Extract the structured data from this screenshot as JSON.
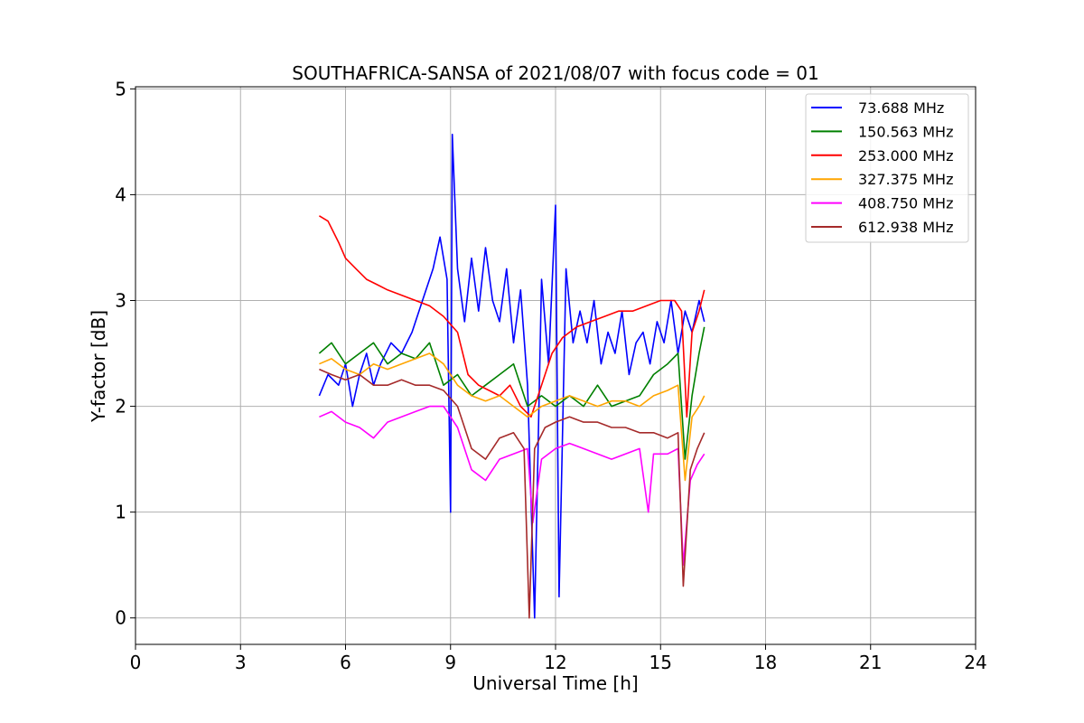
{
  "chart_data": {
    "type": "line",
    "title": "SOUTHAFRICA-SANSA of 2021/08/07 with focus code = 01",
    "xlabel": "Universal Time [h]",
    "ylabel": "Y-factor [dB]",
    "xlim": [
      0,
      24
    ],
    "ylim": [
      -0.25,
      5.02
    ],
    "xticks": [
      0,
      3,
      6,
      9,
      12,
      15,
      18,
      21,
      24
    ],
    "yticks": [
      0,
      1,
      2,
      3,
      4,
      5
    ],
    "grid": true,
    "legend_position": "top-right",
    "series": [
      {
        "name": " 73.688 MHz",
        "color": "#0000ff",
        "x": [
          5.25,
          5.5,
          5.8,
          6.0,
          6.2,
          6.4,
          6.6,
          6.8,
          7.0,
          7.3,
          7.6,
          7.9,
          8.2,
          8.5,
          8.7,
          8.9,
          9.0,
          9.05,
          9.2,
          9.4,
          9.6,
          9.8,
          10.0,
          10.2,
          10.4,
          10.6,
          10.8,
          11.0,
          11.2,
          11.4,
          11.6,
          11.8,
          12.0,
          12.1,
          12.3,
          12.5,
          12.7,
          12.9,
          13.1,
          13.3,
          13.5,
          13.7,
          13.9,
          14.1,
          14.3,
          14.5,
          14.7,
          14.9,
          15.1,
          15.3,
          15.5,
          15.7,
          15.9,
          16.1,
          16.25
        ],
        "y": [
          2.1,
          2.3,
          2.2,
          2.4,
          2.0,
          2.3,
          2.5,
          2.2,
          2.4,
          2.6,
          2.5,
          2.7,
          3.0,
          3.3,
          3.6,
          3.2,
          1.0,
          4.57,
          3.3,
          2.8,
          3.4,
          2.9,
          3.5,
          3.0,
          2.8,
          3.3,
          2.6,
          3.1,
          2.2,
          0.0,
          3.2,
          2.4,
          3.9,
          0.2,
          3.3,
          2.6,
          2.9,
          2.6,
          3.0,
          2.4,
          2.7,
          2.5,
          2.9,
          2.3,
          2.6,
          2.7,
          2.4,
          2.8,
          2.6,
          3.0,
          2.5,
          2.9,
          2.7,
          3.0,
          2.8
        ]
      },
      {
        "name": "150.563 MHz",
        "color": "#008000",
        "x": [
          5.25,
          5.6,
          6.0,
          6.4,
          6.8,
          7.2,
          7.6,
          8.0,
          8.4,
          8.8,
          9.2,
          9.6,
          10.0,
          10.4,
          10.8,
          11.2,
          11.6,
          12.0,
          12.4,
          12.8,
          13.2,
          13.6,
          14.0,
          14.4,
          14.8,
          15.2,
          15.5,
          15.7,
          15.9,
          16.1,
          16.25
        ],
        "y": [
          2.5,
          2.6,
          2.4,
          2.5,
          2.6,
          2.4,
          2.5,
          2.45,
          2.6,
          2.2,
          2.3,
          2.1,
          2.2,
          2.3,
          2.4,
          2.0,
          2.1,
          2.0,
          2.1,
          2.0,
          2.2,
          2.0,
          2.05,
          2.1,
          2.3,
          2.4,
          2.5,
          1.5,
          2.1,
          2.5,
          2.75
        ]
      },
      {
        "name": "253.000 MHz",
        "color": "#ff0000",
        "x": [
          5.25,
          5.5,
          5.8,
          6.0,
          6.3,
          6.6,
          6.9,
          7.2,
          7.6,
          8.0,
          8.4,
          8.8,
          9.2,
          9.5,
          9.8,
          10.1,
          10.4,
          10.7,
          11.0,
          11.3,
          11.6,
          11.9,
          12.2,
          12.6,
          13.0,
          13.4,
          13.8,
          14.2,
          14.6,
          15.0,
          15.4,
          15.6,
          15.75,
          15.9,
          16.1,
          16.25
        ],
        "y": [
          3.8,
          3.75,
          3.55,
          3.4,
          3.3,
          3.2,
          3.15,
          3.1,
          3.05,
          3.0,
          2.95,
          2.85,
          2.7,
          2.3,
          2.2,
          2.15,
          2.1,
          2.2,
          2.0,
          1.9,
          2.2,
          2.5,
          2.65,
          2.75,
          2.8,
          2.85,
          2.9,
          2.9,
          2.95,
          3.0,
          3.0,
          2.9,
          1.9,
          2.7,
          2.9,
          3.1
        ]
      },
      {
        "name": "327.375 MHz",
        "color": "#ffa500",
        "x": [
          5.25,
          5.6,
          6.0,
          6.4,
          6.8,
          7.2,
          7.6,
          8.0,
          8.4,
          8.8,
          9.2,
          9.6,
          10.0,
          10.4,
          10.8,
          11.2,
          11.6,
          12.0,
          12.4,
          12.8,
          13.2,
          13.6,
          14.0,
          14.4,
          14.8,
          15.2,
          15.5,
          15.7,
          15.9,
          16.1,
          16.25
        ],
        "y": [
          2.4,
          2.45,
          2.35,
          2.3,
          2.4,
          2.35,
          2.4,
          2.45,
          2.5,
          2.4,
          2.2,
          2.1,
          2.05,
          2.1,
          2.0,
          1.9,
          2.0,
          2.05,
          2.1,
          2.05,
          2.0,
          2.05,
          2.05,
          2.0,
          2.1,
          2.15,
          2.2,
          1.3,
          1.9,
          2.0,
          2.1
        ]
      },
      {
        "name": "408.750 MHz",
        "color": "#ff00ff",
        "x": [
          5.25,
          5.6,
          6.0,
          6.4,
          6.8,
          7.2,
          7.6,
          8.0,
          8.4,
          8.8,
          9.2,
          9.6,
          10.0,
          10.4,
          10.8,
          11.2,
          11.35,
          11.6,
          12.0,
          12.4,
          12.8,
          13.2,
          13.6,
          14.0,
          14.4,
          14.65,
          14.8,
          15.2,
          15.5,
          15.65,
          15.85,
          16.05,
          16.25
        ],
        "y": [
          1.9,
          1.95,
          1.85,
          1.8,
          1.7,
          1.85,
          1.9,
          1.95,
          2.0,
          2.0,
          1.8,
          1.4,
          1.3,
          1.5,
          1.55,
          1.6,
          0.9,
          1.5,
          1.6,
          1.65,
          1.6,
          1.55,
          1.5,
          1.55,
          1.6,
          1.0,
          1.55,
          1.55,
          1.6,
          0.5,
          1.3,
          1.45,
          1.55
        ]
      },
      {
        "name": "612.938 MHz",
        "color": "#a52a2a",
        "x": [
          5.25,
          5.6,
          6.0,
          6.4,
          6.8,
          7.2,
          7.6,
          8.0,
          8.4,
          8.8,
          9.2,
          9.6,
          10.0,
          10.4,
          10.8,
          11.1,
          11.25,
          11.4,
          11.7,
          12.0,
          12.4,
          12.8,
          13.2,
          13.6,
          14.0,
          14.4,
          14.8,
          15.2,
          15.5,
          15.65,
          15.85,
          16.05,
          16.25
        ],
        "y": [
          2.35,
          2.3,
          2.25,
          2.3,
          2.2,
          2.2,
          2.25,
          2.2,
          2.2,
          2.15,
          2.0,
          1.6,
          1.5,
          1.7,
          1.75,
          1.6,
          0.0,
          1.6,
          1.8,
          1.85,
          1.9,
          1.85,
          1.85,
          1.8,
          1.8,
          1.75,
          1.75,
          1.7,
          1.75,
          0.3,
          1.4,
          1.6,
          1.75
        ]
      }
    ]
  }
}
